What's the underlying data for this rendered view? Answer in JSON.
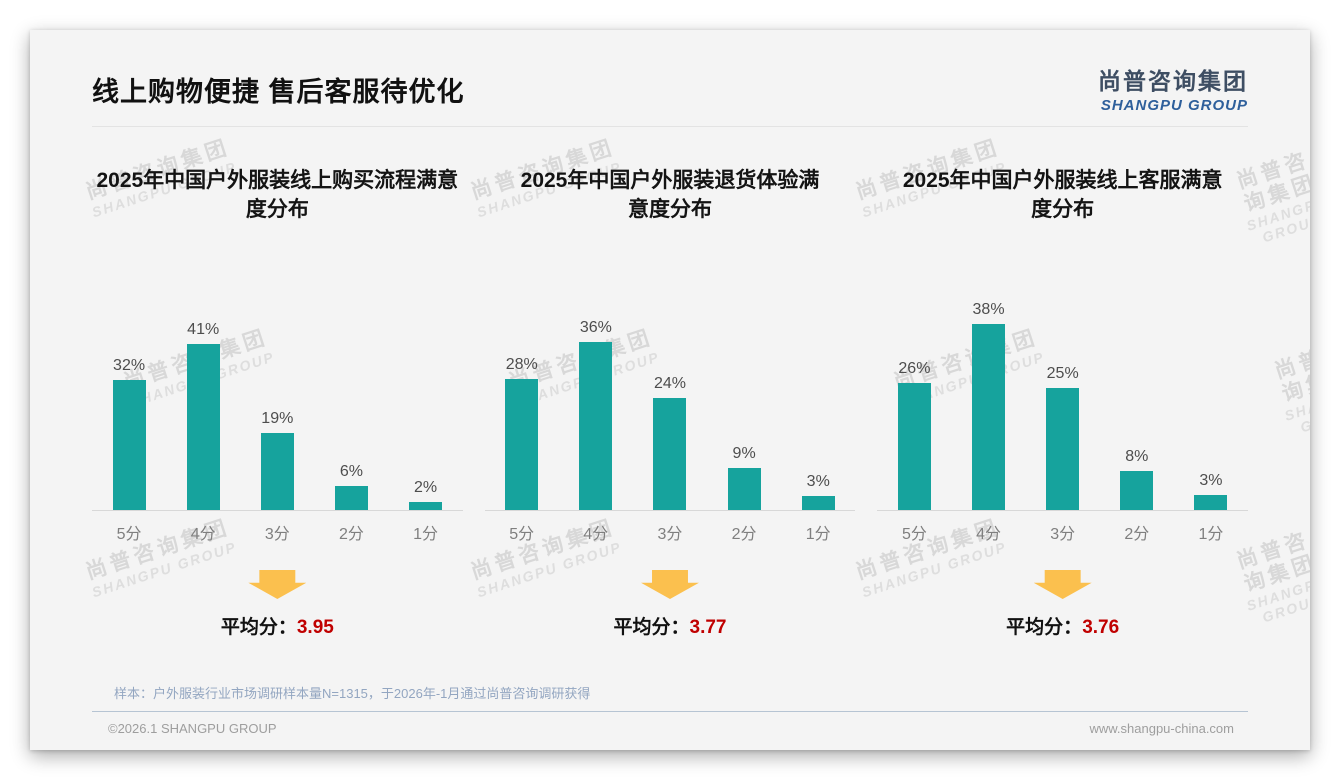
{
  "page": {
    "title": "线上购物便捷 售后客服待优化",
    "logo": {
      "cn": "尚普咨询集团",
      "en": "SHANGPU GROUP"
    },
    "watermark": {
      "line1": "尚普咨询集团",
      "line2": "SHANGPU GROUP"
    },
    "note": "样本：户外服装行业市场调研样本量N=1315，于2026年-1月通过尚普咨询调研获得",
    "footer": {
      "left": "©2026.1 SHANGPU GROUP",
      "right": "www.shangpu-china.com"
    }
  },
  "colors": {
    "bar": "#16A39D",
    "avg_value": "#C00000",
    "arrow": "#FBC04E",
    "logo_cn": "#3E4E63",
    "logo_en": "#2E5F9B"
  },
  "chart_data": [
    {
      "type": "bar",
      "title": "2025年中国户外服装线上购买流程满意\n度分布",
      "categories": [
        "5分",
        "4分",
        "3分",
        "2分",
        "1分"
      ],
      "values": [
        32,
        41,
        19,
        6,
        2
      ],
      "unit": "%",
      "xlabel": "",
      "ylabel": "",
      "ylim": [
        0,
        45
      ],
      "grid": false,
      "legend": "none",
      "value_labels": true,
      "avg_label": "平均分：",
      "avg_value": "3.95"
    },
    {
      "type": "bar",
      "title": "2025年中国户外服装退货体验满\n意度分布",
      "categories": [
        "5分",
        "4分",
        "3分",
        "2分",
        "1分"
      ],
      "values": [
        28,
        36,
        24,
        9,
        3
      ],
      "unit": "%",
      "xlabel": "",
      "ylabel": "",
      "ylim": [
        0,
        40
      ],
      "grid": false,
      "legend": "none",
      "value_labels": true,
      "avg_label": "平均分：",
      "avg_value": "3.77"
    },
    {
      "type": "bar",
      "title": "2025年中国户外服装线上客服满意\n度分布",
      "categories": [
        "5分",
        "4分",
        "3分",
        "2分",
        "1分"
      ],
      "values": [
        26,
        38,
        25,
        8,
        3
      ],
      "unit": "%",
      "xlabel": "",
      "ylabel": "",
      "ylim": [
        0,
        40
      ],
      "grid": false,
      "legend": "none",
      "value_labels": true,
      "avg_label": "平均分：",
      "avg_value": "3.76"
    }
  ]
}
